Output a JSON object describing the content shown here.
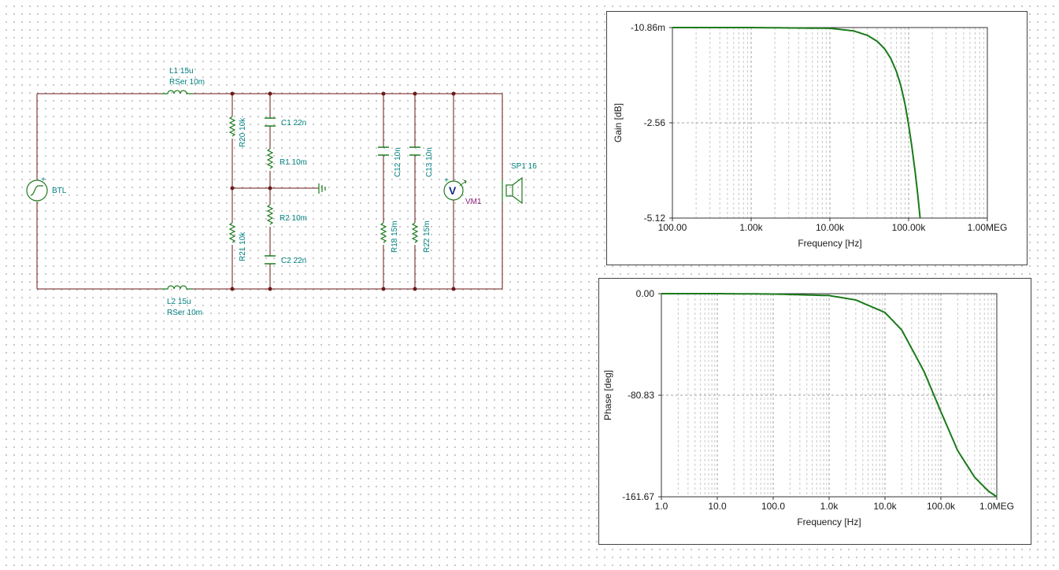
{
  "schematic": {
    "components": {
      "L1": "L1 15u",
      "L1_rser": "RSer 10m",
      "L2": "L2 15u",
      "L2_rser": "RSer 10m",
      "BTL": "BTL",
      "R20": "R20 10k",
      "R21": "R21 10k",
      "C1": "C1 22n",
      "R1": "R1 10m",
      "R2": "R2 10m",
      "C2": "C2 22n",
      "C12": "C12 10n",
      "C13": "C13 10n",
      "R18": "R18 15m",
      "R22": "R22 15m",
      "VM1": "VM1",
      "VM1_symbol": "V",
      "SP1": "SP1 16"
    },
    "colors": {
      "wire": "#6b1a1a",
      "label": "#00817f",
      "meter": "#8e1f7b",
      "symbol": "#1e7a1e"
    }
  },
  "charts": {
    "gain": {
      "ylabel": "Gain [dB]",
      "xlabel": "Frequency [Hz]",
      "x_ticks": [
        "100.00",
        "1.00k",
        "10.00k",
        "100.00k",
        "1.00MEG"
      ],
      "y_ticks": [
        "-10.86m",
        "-2.56",
        "-5.12"
      ]
    },
    "phase": {
      "ylabel": "Phase [deg]",
      "xlabel": "Frequency [Hz]",
      "x_ticks": [
        "1.0",
        "10.0",
        "100.0",
        "1.0k",
        "10.0k",
        "100.0k",
        "1.0MEG"
      ],
      "y_ticks": [
        "0.00",
        "-80.83",
        "-161.67"
      ]
    }
  },
  "chart_data": [
    {
      "type": "line",
      "xscale": "log",
      "xlabel": "Frequency [Hz]",
      "ylabel": "Gain [dB]",
      "xlim": [
        100,
        1000000
      ],
      "ylim": [
        -5.12,
        -0.01086
      ],
      "grid": true,
      "line_color": "#1a7a1a",
      "x": [
        100,
        1000,
        10000,
        20000,
        30000,
        40000,
        50000,
        60000,
        70000,
        80000,
        90000,
        100000,
        110000,
        120000,
        130000,
        140000
      ],
      "y": [
        -0.0109,
        -0.011,
        -0.03,
        -0.1,
        -0.22,
        -0.38,
        -0.59,
        -0.86,
        -1.19,
        -1.58,
        -2.06,
        -2.62,
        -3.2,
        -3.82,
        -4.45,
        -5.12
      ]
    },
    {
      "type": "line",
      "xscale": "log",
      "xlabel": "Frequency [Hz]",
      "ylabel": "Phase [deg]",
      "xlim": [
        1,
        1000000
      ],
      "ylim": [
        -161.67,
        0
      ],
      "grid": true,
      "line_color": "#1a7a1a",
      "x": [
        1,
        10,
        100,
        1000,
        3000,
        10000,
        20000,
        50000,
        100000,
        200000,
        400000,
        700000,
        1000000
      ],
      "y": [
        0,
        0,
        -0.3,
        -1.5,
        -5,
        -15,
        -29,
        -62,
        -94,
        -125,
        -146,
        -157,
        -161.67
      ]
    }
  ]
}
